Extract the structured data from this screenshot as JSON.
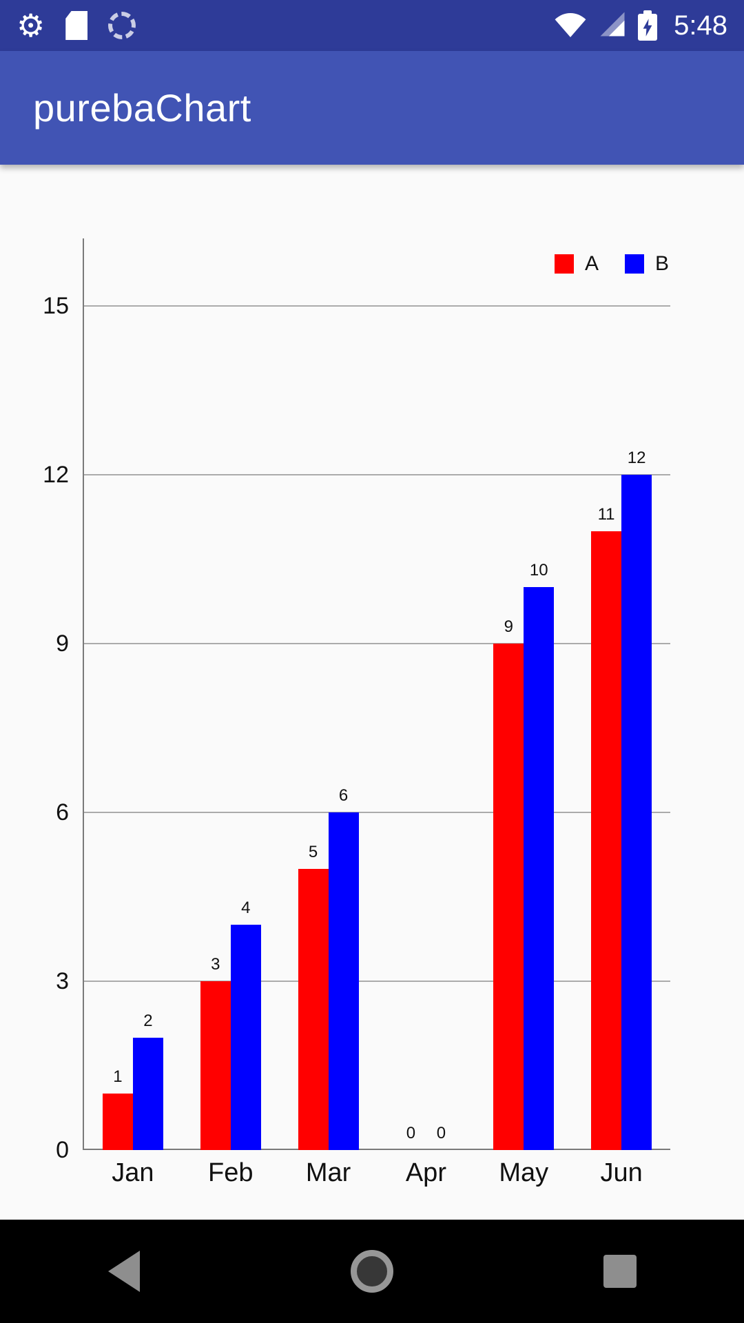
{
  "status_bar": {
    "time": "5:48",
    "icons_left": [
      "settings-gear-icon",
      "sd-card-icon",
      "sync-spinner-icon"
    ],
    "icons_right": [
      "wifi-icon",
      "signal-icon",
      "battery-charging-icon"
    ]
  },
  "app_bar": {
    "title": "purebaChart",
    "background_color": "#4154B4"
  },
  "chart_data": {
    "type": "bar",
    "title": "",
    "xlabel": "",
    "ylabel": "",
    "categories": [
      "Jan",
      "Feb",
      "Mar",
      "Apr",
      "May",
      "Jun"
    ],
    "series": [
      {
        "name": "A",
        "color": "#FF0000",
        "values": [
          1,
          3,
          5,
          0,
          9,
          11
        ]
      },
      {
        "name": "B",
        "color": "#0000FF",
        "values": [
          2,
          4,
          6,
          0,
          10,
          12
        ]
      }
    ],
    "y_ticks": [
      0,
      3,
      6,
      9,
      12,
      15
    ],
    "ylim": [
      0,
      16.2
    ],
    "grid": true,
    "legend_position": "top-right",
    "data_labels": true
  },
  "nav_bar": {
    "icons": [
      "back-icon",
      "home-icon",
      "recents-icon"
    ]
  }
}
